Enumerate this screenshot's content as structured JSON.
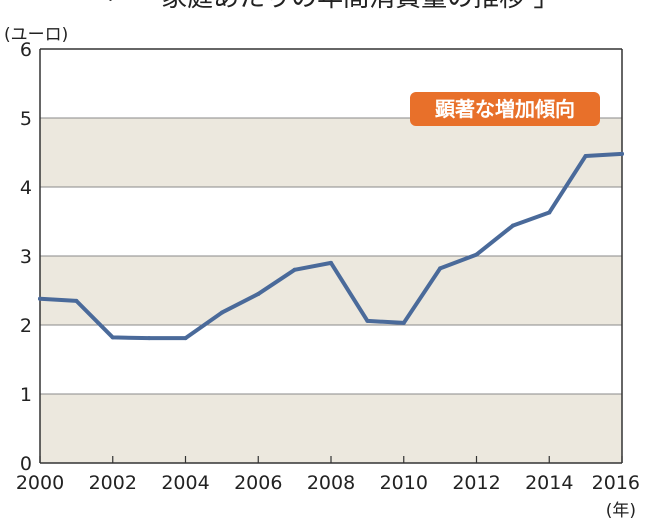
{
  "header": {
    "title_fragment": "「 一 家庭あたりの年間消費量の推移 」"
  },
  "chart_data": {
    "type": "line",
    "title": "",
    "ylabel": "(ユーロ)",
    "xlabel": "(年)",
    "x": [
      2000,
      2001,
      2002,
      2003,
      2004,
      2005,
      2006,
      2007,
      2008,
      2009,
      2010,
      2011,
      2012,
      2013,
      2014,
      2015,
      2016
    ],
    "series": [
      {
        "values": [
          2.38,
          2.35,
          1.82,
          1.81,
          1.81,
          2.18,
          2.45,
          2.8,
          2.9,
          2.06,
          2.03,
          2.82,
          3.02,
          3.44,
          3.63,
          4.45,
          4.48
        ]
      }
    ],
    "xlim": [
      2000,
      2016
    ],
    "ylim": [
      0,
      6
    ],
    "y_ticks": [
      "0",
      "1",
      "2",
      "3",
      "4",
      "5",
      "6"
    ],
    "x_ticks": [
      "2000",
      "2002",
      "2004",
      "2006",
      "2008",
      "2010",
      "2012",
      "2014",
      "2016"
    ],
    "grid": true,
    "annotation": {
      "text": "顕著な増加傾向"
    },
    "colors": {
      "line": "#4a6a9a",
      "band": "#ece8de",
      "annotation_bg": "#e8702a",
      "grid": "#8a8a8a"
    }
  }
}
